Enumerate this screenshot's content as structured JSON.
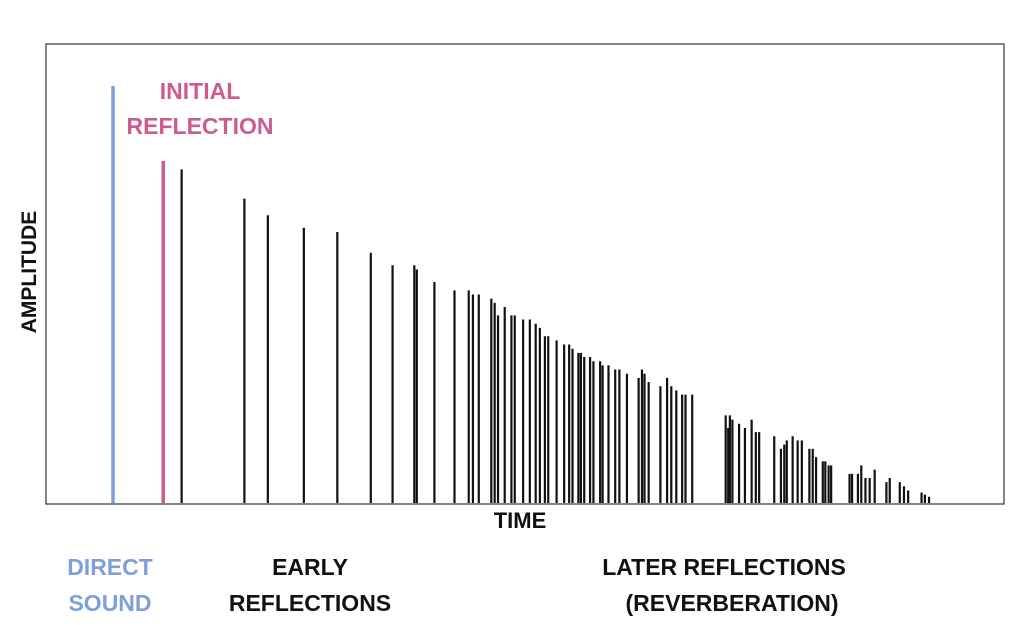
{
  "chart_data": {
    "type": "bar",
    "title": "",
    "xlabel": "TIME",
    "ylabel": "AMPLITUDE",
    "grid": false,
    "ylim": [
      0,
      1
    ],
    "annotations": {
      "initial_reflection": [
        "INITIAL",
        "REFLECTION"
      ],
      "direct_sound": [
        "DIRECT",
        "SOUND"
      ],
      "early_reflections": [
        "EARLY",
        "REFLECTIONS"
      ],
      "later_reflections": [
        "LATER REFLECTIONS",
        "(REVERBERATION)"
      ]
    },
    "colors": {
      "direct": "#7f9fd9",
      "initial": "#cc5b8f",
      "reflections": "#111111"
    },
    "series": [
      {
        "name": "DIRECT SOUND",
        "x": [
          0.0
        ],
        "values": [
          1.0
        ]
      },
      {
        "name": "INITIAL REFLECTION",
        "x": [
          0.06
        ],
        "values": [
          0.82
        ]
      },
      {
        "name": "REFLECTIONS",
        "x": [
          0.082,
          0.157,
          0.185,
          0.228,
          0.268,
          0.308,
          0.334,
          0.36,
          0.363,
          0.384,
          0.408,
          0.425,
          0.43,
          0.437,
          0.452,
          0.456,
          0.46,
          0.468,
          0.476,
          0.48,
          0.49,
          0.498,
          0.505,
          0.51,
          0.516,
          0.52,
          0.53,
          0.539,
          0.545,
          0.549,
          0.556,
          0.559,
          0.563,
          0.57,
          0.574,
          0.582,
          0.585,
          0.592,
          0.6,
          0.605,
          0.614,
          0.628,
          0.632,
          0.635,
          0.64,
          0.654,
          0.662,
          0.667,
          0.673,
          0.68,
          0.684,
          0.692,
          0.732,
          0.735,
          0.737,
          0.74,
          0.748,
          0.755,
          0.763,
          0.768,
          0.772,
          0.79,
          0.798,
          0.802,
          0.805,
          0.812,
          0.818,
          0.823,
          0.832,
          0.836,
          0.84,
          0.848,
          0.851,
          0.855,
          0.858,
          0.88,
          0.883,
          0.89,
          0.894,
          0.899,
          0.904,
          0.91,
          0.924,
          0.928,
          0.94,
          0.945,
          0.95,
          0.966,
          0.97,
          0.975
        ],
        "values": [
          0.8,
          0.73,
          0.69,
          0.66,
          0.65,
          0.6,
          0.57,
          0.57,
          0.56,
          0.53,
          0.51,
          0.51,
          0.5,
          0.5,
          0.49,
          0.48,
          0.45,
          0.47,
          0.45,
          0.45,
          0.44,
          0.44,
          0.43,
          0.42,
          0.4,
          0.4,
          0.39,
          0.38,
          0.38,
          0.37,
          0.36,
          0.36,
          0.35,
          0.35,
          0.34,
          0.34,
          0.33,
          0.33,
          0.32,
          0.32,
          0.31,
          0.3,
          0.32,
          0.31,
          0.29,
          0.28,
          0.3,
          0.28,
          0.27,
          0.26,
          0.26,
          0.26,
          0.21,
          0.18,
          0.21,
          0.2,
          0.19,
          0.18,
          0.2,
          0.17,
          0.17,
          0.16,
          0.13,
          0.14,
          0.15,
          0.16,
          0.15,
          0.15,
          0.13,
          0.13,
          0.11,
          0.1,
          0.1,
          0.09,
          0.09,
          0.07,
          0.07,
          0.07,
          0.09,
          0.06,
          0.06,
          0.08,
          0.05,
          0.06,
          0.05,
          0.04,
          0.03,
          0.025,
          0.02,
          0.015
        ]
      }
    ]
  }
}
